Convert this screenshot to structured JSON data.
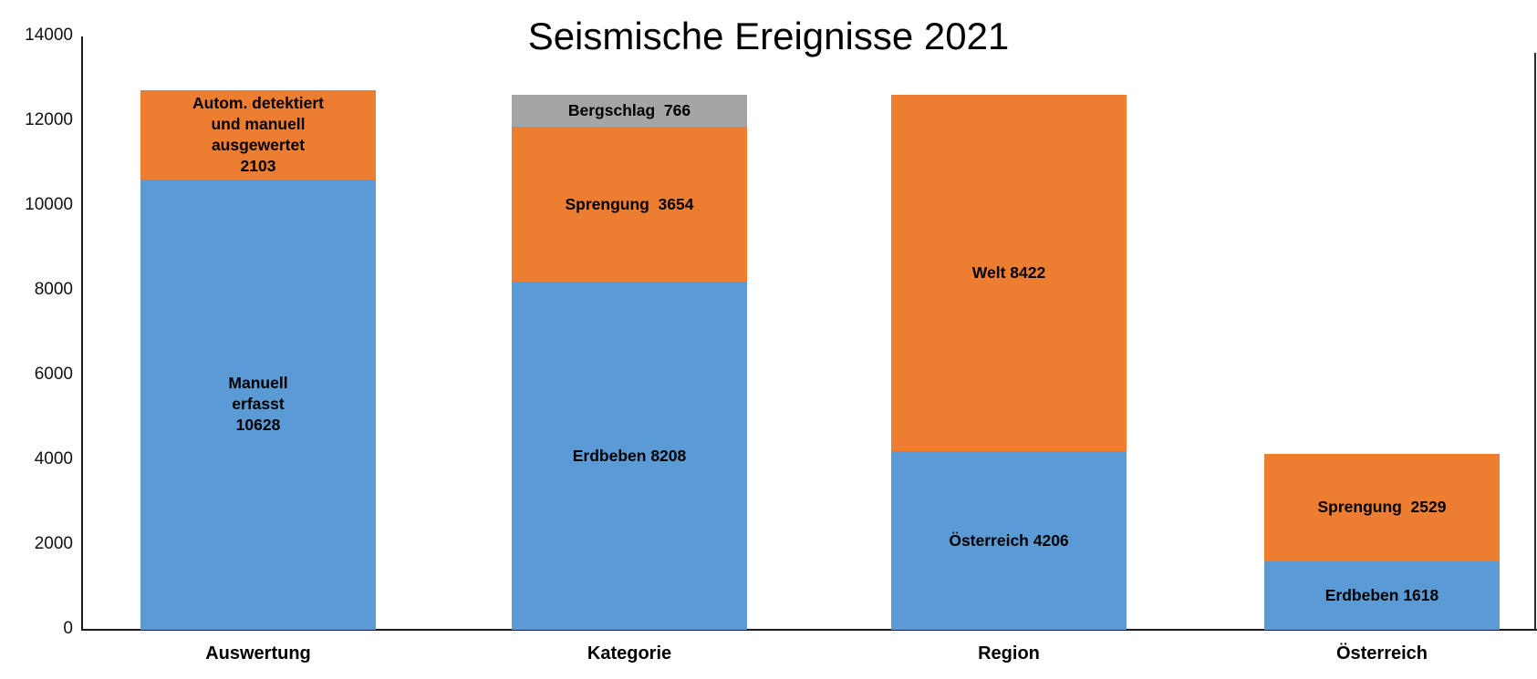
{
  "chart_data": {
    "type": "bar",
    "stacked": true,
    "title": "Seismische Ereignisse 2021",
    "xlabel": "",
    "ylabel": "",
    "ylim": [
      0,
      14000
    ],
    "ytick_interval": 2000,
    "yticks": [
      "0",
      "2000",
      "4000",
      "6000",
      "8000",
      "10000",
      "12000",
      "14000"
    ],
    "grid": false,
    "legend": "none",
    "colors": {
      "blue": "#5B9BD5",
      "orange": "#ED7D31",
      "gray": "#A5A5A5"
    },
    "categories": [
      "Auswertung",
      "Kategorie",
      "Region",
      "Österreich"
    ],
    "bars": [
      {
        "category": "Auswertung",
        "total": 12731,
        "segments": [
          {
            "name": "Manuell erfasst",
            "value": 10628,
            "color": "#5B9BD5",
            "label_lines": [
              "Manuell",
              "erfasst",
              "10628"
            ]
          },
          {
            "name": "Autom. detektiert und manuell ausgewertet",
            "value": 2103,
            "color": "#ED7D31",
            "label_lines": [
              "Autom. detektiert",
              "und manuell",
              "ausgewertet",
              "2103"
            ]
          }
        ]
      },
      {
        "category": "Kategorie",
        "total": 12628,
        "segments": [
          {
            "name": "Erdbeben",
            "value": 8208,
            "color": "#5B9BD5",
            "label_lines": [
              "Erdbeben 8208"
            ]
          },
          {
            "name": "Sprengung",
            "value": 3654,
            "color": "#ED7D31",
            "label_lines": [
              "Sprengung  3654"
            ]
          },
          {
            "name": "Bergschlag",
            "value": 766,
            "color": "#A5A5A5",
            "label_lines": [
              "Bergschlag  766"
            ]
          }
        ]
      },
      {
        "category": "Region",
        "total": 12628,
        "segments": [
          {
            "name": "Österreich",
            "value": 4206,
            "color": "#5B9BD5",
            "label_lines": [
              "Österreich 4206"
            ]
          },
          {
            "name": "Welt",
            "value": 8422,
            "color": "#ED7D31",
            "label_lines": [
              "Welt 8422"
            ]
          }
        ]
      },
      {
        "category": "Österreich",
        "total": 4147,
        "segments": [
          {
            "name": "Erdbeben",
            "value": 1618,
            "color": "#5B9BD5",
            "label_lines": [
              "Erdbeben 1618"
            ]
          },
          {
            "name": "Sprengung",
            "value": 2529,
            "color": "#ED7D31",
            "label_lines": [
              "Sprengung  2529"
            ]
          }
        ]
      }
    ]
  }
}
